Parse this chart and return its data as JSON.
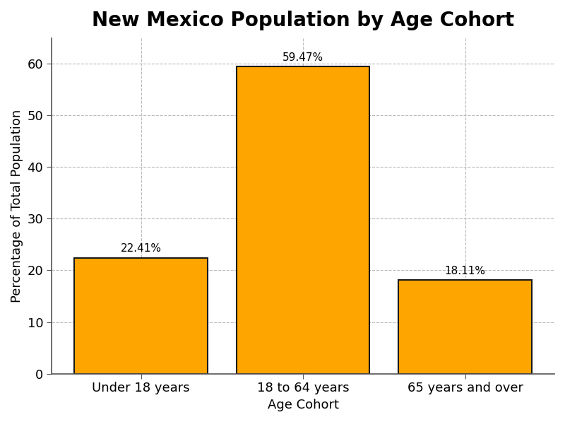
{
  "title": "New Mexico Population by Age Cohort",
  "xlabel": "Age Cohort",
  "ylabel": "Percentage of Total Population",
  "categories": [
    "Under 18 years",
    "18 to 64 years",
    "65 years and over"
  ],
  "values": [
    22.41,
    59.47,
    18.11
  ],
  "labels": [
    "22.41%",
    "59.47%",
    "18.11%"
  ],
  "bar_color": "#FFA500",
  "bar_edgecolor": "#1a1a1a",
  "background_color": "#ffffff",
  "grid_color": "#bbbbbb",
  "ylim": [
    0,
    65
  ],
  "yticks": [
    0,
    10,
    20,
    30,
    40,
    50,
    60
  ],
  "title_fontsize": 20,
  "label_fontsize": 13,
  "tick_fontsize": 13,
  "annotation_fontsize": 11,
  "bar_width": 0.82
}
